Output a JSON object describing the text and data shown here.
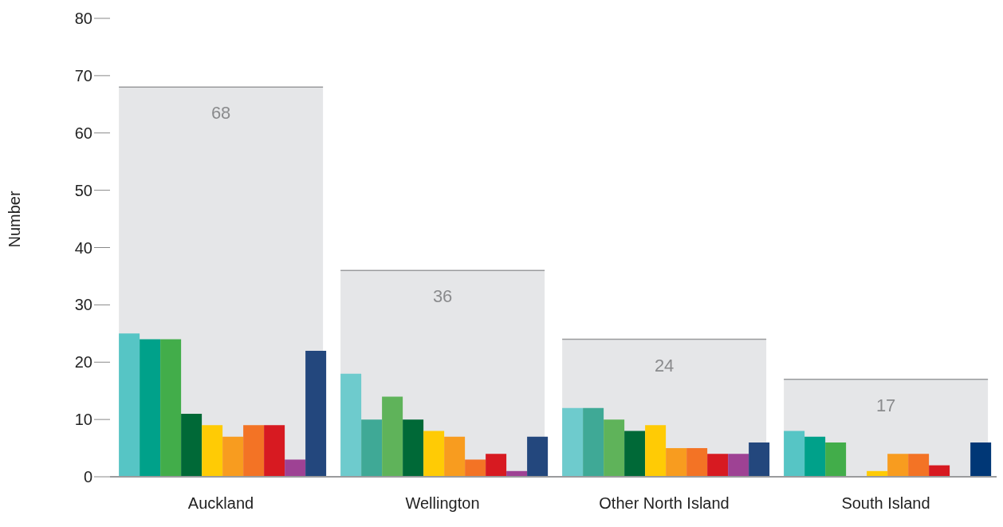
{
  "chart_data": {
    "type": "bar",
    "ylabel": "Number",
    "categories": [
      "Auckland",
      "Wellington",
      "Other North Island",
      "South Island"
    ],
    "ylim": [
      0,
      80
    ],
    "yticks": [
      0,
      10,
      20,
      30,
      40,
      50,
      60,
      70,
      80
    ],
    "series": [
      {
        "type": "bar",
        "color": "#e5e6e8",
        "values": [
          68,
          36,
          24,
          17
        ],
        "value_labels": [
          "68",
          "36",
          "24",
          "17"
        ]
      },
      {
        "color": "#56c5c5",
        "colors": [
          "#56c5c5",
          "#6ecbcd",
          "#6ecbcd",
          "#56c5c5"
        ],
        "values": [
          25,
          18,
          12,
          8
        ]
      },
      {
        "color": "#00a18a",
        "colors": [
          "#00a18a",
          "#3fa996",
          "#3fa996",
          "#00a18a"
        ],
        "values": [
          24,
          10,
          12,
          7
        ]
      },
      {
        "color": "#42ad4a",
        "colors": [
          "#42ad4a",
          "#5fb35a",
          "#5fb35a",
          "#42ad4a"
        ],
        "values": [
          24,
          14,
          10,
          6
        ]
      },
      {
        "color": "#006937",
        "values": [
          11,
          10,
          8,
          0
        ]
      },
      {
        "color": "#ffcb05",
        "values": [
          9,
          8,
          9,
          1
        ]
      },
      {
        "color": "#f89c1f",
        "values": [
          7,
          7,
          5,
          4
        ]
      },
      {
        "color": "#f37325",
        "values": [
          9,
          3,
          5,
          4
        ]
      },
      {
        "color": "#d71a21",
        "values": [
          9,
          4,
          4,
          2
        ]
      },
      {
        "color": "#9e4294",
        "values": [
          3,
          1,
          4,
          0
        ]
      },
      {
        "color": "#23477d",
        "colors": [
          "#23477d",
          "#23477d",
          "#23477d",
          "#003776"
        ],
        "values": [
          22,
          7,
          6,
          6
        ]
      }
    ]
  }
}
